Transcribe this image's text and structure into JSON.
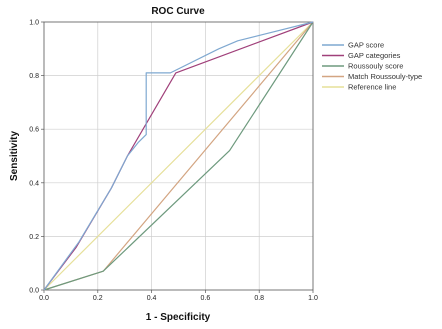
{
  "chart_data": {
    "type": "line",
    "title": "ROC Curve",
    "xlabel": "1 - Specificity",
    "ylabel": "Sensitivity",
    "xlim": [
      0,
      1
    ],
    "ylim": [
      0,
      1
    ],
    "xticks": [
      "0.0",
      "0.2",
      "0.4",
      "0.6",
      "0.8",
      "1.0"
    ],
    "yticks": [
      "0.0",
      "0.2",
      "0.4",
      "0.6",
      "0.8",
      "1.0"
    ],
    "grid": true,
    "legend_position": "right",
    "series": [
      {
        "name": "GAP score",
        "color": "#7fa8d0",
        "points": [
          [
            0,
            0
          ],
          [
            0.13,
            0.18
          ],
          [
            0.25,
            0.38
          ],
          [
            0.31,
            0.5
          ],
          [
            0.35,
            0.55
          ],
          [
            0.38,
            0.58
          ],
          [
            0.38,
            0.81
          ],
          [
            0.47,
            0.81
          ],
          [
            0.65,
            0.9
          ],
          [
            0.72,
            0.93
          ],
          [
            0.8,
            0.95
          ],
          [
            1,
            1
          ]
        ]
      },
      {
        "name": "GAP categories",
        "color": "#a0407a",
        "points": [
          [
            0,
            0
          ],
          [
            0.12,
            0.16
          ],
          [
            0.25,
            0.38
          ],
          [
            0.31,
            0.5
          ],
          [
            0.49,
            0.81
          ],
          [
            1,
            1
          ]
        ]
      },
      {
        "name": "Roussouly score",
        "color": "#6e9a7e",
        "points": [
          [
            0,
            0
          ],
          [
            0.22,
            0.07
          ],
          [
            0.69,
            0.52
          ],
          [
            1,
            1
          ]
        ]
      },
      {
        "name": "Match Roussouly-type",
        "color": "#d3a582",
        "points": [
          [
            0,
            0
          ],
          [
            0.22,
            0.07
          ],
          [
            1,
            1
          ]
        ]
      },
      {
        "name": "Reference line",
        "color": "#e6e099",
        "points": [
          [
            0,
            0
          ],
          [
            1,
            1
          ]
        ]
      }
    ]
  }
}
